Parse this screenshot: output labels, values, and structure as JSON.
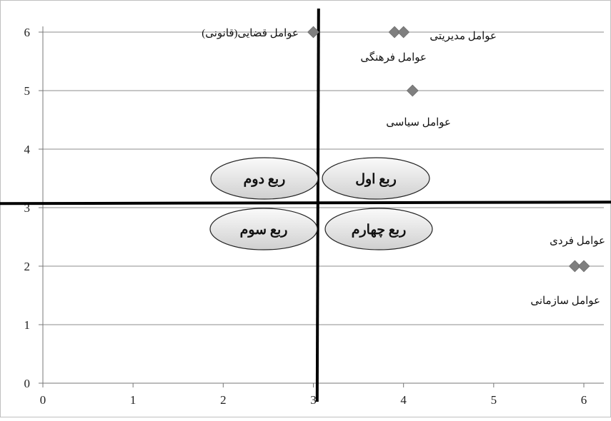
{
  "chart_data": {
    "type": "scatter",
    "xlim": [
      0,
      6
    ],
    "ylim": [
      0,
      6
    ],
    "x_ticks": [
      "0",
      "1",
      "2",
      "3",
      "4",
      "5",
      "6"
    ],
    "y_ticks": [
      "0",
      "1",
      "2",
      "3",
      "4",
      "5",
      "6"
    ],
    "grid": "horizontal",
    "marker_color": "#7f7f7f",
    "divider_x": 3.05,
    "divider_y": 3.07,
    "points": [
      {
        "x": 3.0,
        "y": 6,
        "label": "عوامل قضایی(قانونی)"
      },
      {
        "x": 3.9,
        "y": 6,
        "label": "عوامل مدیریتی"
      },
      {
        "x": 4.0,
        "y": 6,
        "label": "عوامل فرهنگی"
      },
      {
        "x": 4.1,
        "y": 5,
        "label": "عوامل سیاسی"
      },
      {
        "x": 5.9,
        "y": 2,
        "label": "عوامل فردی"
      },
      {
        "x": 6.0,
        "y": 2,
        "label": "عوامل سازمانی"
      }
    ],
    "quadrants": [
      {
        "key": "q1",
        "label": "ربع اول"
      },
      {
        "key": "q2",
        "label": "ربع دوم"
      },
      {
        "key": "q3",
        "label": "ربع سوم"
      },
      {
        "key": "q4",
        "label": "ربع چهارم"
      }
    ]
  }
}
